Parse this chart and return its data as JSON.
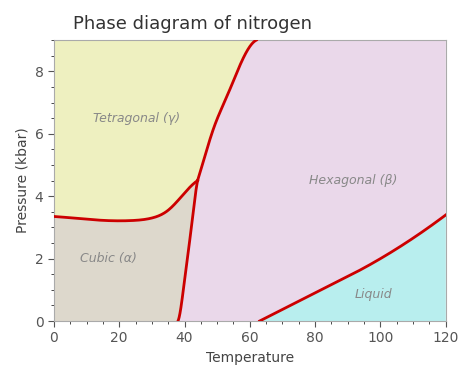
{
  "title": "Phase diagram of nitrogen",
  "xlabel": "Temperature",
  "ylabel": "Pressure (kbar)",
  "xlim": [
    0,
    120
  ],
  "ylim": [
    0,
    9
  ],
  "xticks": [
    0,
    20,
    40,
    60,
    80,
    100,
    120
  ],
  "yticks": [
    0,
    2,
    4,
    6,
    8
  ],
  "bg_color": "#ffffff",
  "plot_bg": "#ffffff",
  "phase_colors": {
    "tetragonal": "#eef0c0",
    "cubic": "#ddd8cc",
    "hexagonal": "#ead8ea",
    "liquid": "#b8eeee"
  },
  "phase_labels": {
    "tetragonal": [
      "Tetragonal (γ)",
      12,
      6.5
    ],
    "cubic": [
      "Cubic (α)",
      8,
      2.0
    ],
    "hexagonal": [
      "Hexagonal (β)",
      78,
      4.5
    ],
    "liquid": [
      "Liquid",
      92,
      0.85
    ]
  },
  "label_color": "#888888",
  "label_fontsize": 9,
  "title_fontsize": 13,
  "line_color": "#cc0000",
  "line_width": 2.0,
  "triple_T": 44,
  "triple_P": 4.5
}
